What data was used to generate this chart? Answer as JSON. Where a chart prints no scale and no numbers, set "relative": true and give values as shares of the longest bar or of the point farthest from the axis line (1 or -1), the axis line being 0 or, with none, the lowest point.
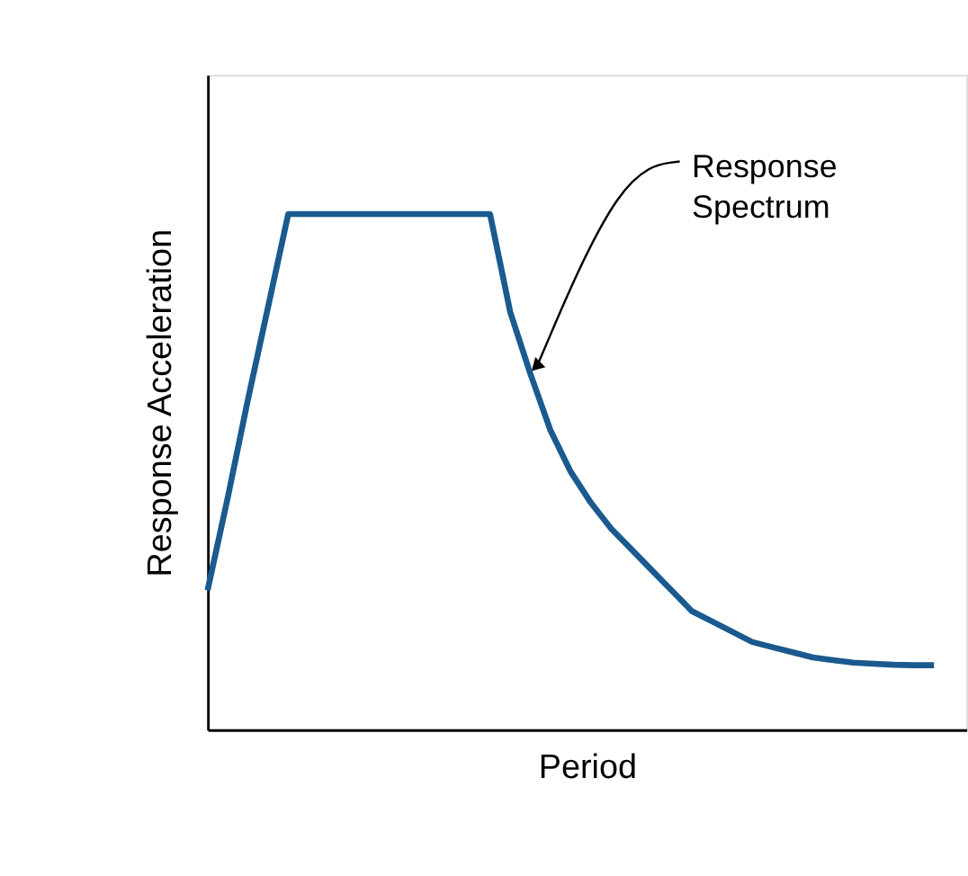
{
  "chart_data": {
    "type": "line",
    "relative": true,
    "xlabel": "Period",
    "ylabel": "Response Acceleration",
    "categories": [
      null,
      null,
      null,
      null,
      null,
      null,
      null,
      null,
      null,
      null,
      null,
      null,
      null,
      null,
      null,
      null,
      null,
      null,
      null,
      null,
      null,
      null,
      null,
      null,
      null,
      null,
      null,
      null,
      null,
      null,
      null,
      null,
      null,
      null,
      null,
      null,
      null
    ],
    "series": [
      {
        "color": "#1a5a8e",
        "values": [
          0.27,
          0.45,
          0.64,
          0.82,
          1,
          1,
          1,
          1,
          1,
          1,
          1,
          1,
          1,
          1,
          1,
          0.81,
          0.69,
          0.58,
          0.5,
          0.44,
          0.39,
          0.35,
          0.31,
          0.27,
          0.23,
          0.21,
          0.19,
          0.17,
          0.16,
          0.15,
          0.14,
          0.135,
          0.13,
          0.128,
          0.126,
          0.125,
          0.125
        ]
      }
    ],
    "annotations": [
      "Response Spectrum"
    ],
    "grid": false,
    "marker": "none",
    "line_style": "solid"
  }
}
